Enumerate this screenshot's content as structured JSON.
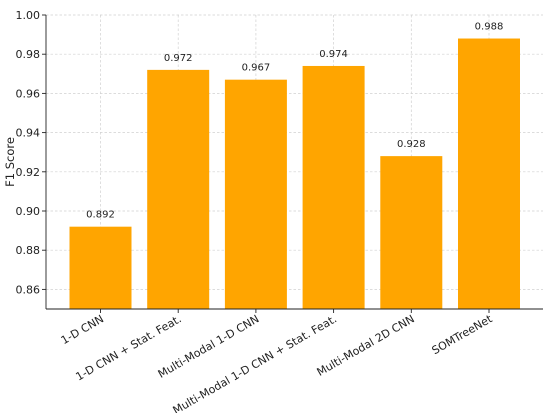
{
  "chart_data": {
    "type": "bar",
    "title": "",
    "xlabel": "",
    "ylabel": "F1 Score",
    "categories": [
      "1-D CNN",
      "1-D CNN + Stat. Feat.",
      "Multi-Modal 1-D CNN",
      "Multi-Modal 1-D CNN + Stat. Feat.",
      "Multi-Modal 2D CNN",
      "SOMTreeNet"
    ],
    "values": [
      0.892,
      0.972,
      0.967,
      0.974,
      0.928,
      0.988
    ],
    "data_labels": [
      "0.892",
      "0.972",
      "0.967",
      "0.974",
      "0.928",
      "0.988"
    ],
    "ylim": [
      0.85,
      1.0
    ],
    "yticks": [
      0.86,
      0.88,
      0.9,
      0.92,
      0.94,
      0.96,
      0.98,
      1.0
    ],
    "ytick_labels": [
      "0.86",
      "0.88",
      "0.90",
      "0.92",
      "0.94",
      "0.96",
      "0.98",
      "1.00"
    ],
    "grid": true,
    "bar_color": "#FFA500"
  }
}
